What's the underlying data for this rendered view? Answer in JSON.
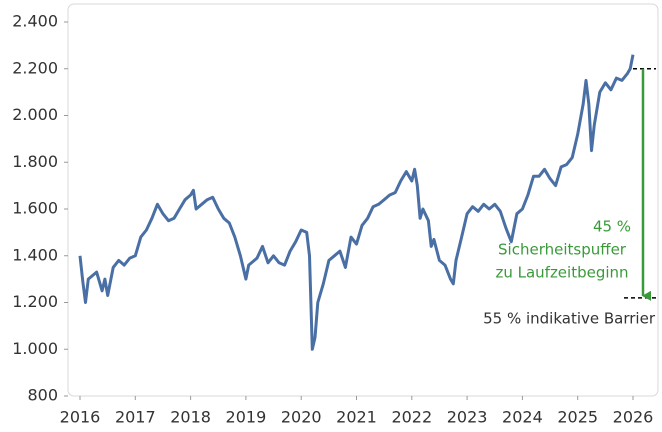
{
  "chart_data": {
    "type": "line",
    "xlim": [
      2016,
      2026
    ],
    "xticks": [
      2016,
      2017,
      2018,
      2019,
      2020,
      2021,
      2022,
      2023,
      2024,
      2025,
      2026
    ],
    "ylim": [
      800,
      2400
    ],
    "yticks": [
      {
        "value": 800,
        "label": "800"
      },
      {
        "value": 1000,
        "label": "1.000"
      },
      {
        "value": 1200,
        "label": "1.200"
      },
      {
        "value": 1400,
        "label": "1.400"
      },
      {
        "value": 1600,
        "label": "1.600"
      },
      {
        "value": 1800,
        "label": "1.800"
      },
      {
        "value": 2000,
        "label": "2.000"
      },
      {
        "value": 2200,
        "label": "2.200"
      },
      {
        "value": 2400,
        "label": "2.400"
      }
    ],
    "series": [
      {
        "color": "#4a6fa5",
        "x": [
          2016.0,
          2016.05,
          2016.1,
          2016.15,
          2016.3,
          2016.4,
          2016.45,
          2016.5,
          2016.6,
          2016.7,
          2016.8,
          2016.9,
          2017.0,
          2017.1,
          2017.2,
          2017.3,
          2017.4,
          2017.5,
          2017.6,
          2017.7,
          2017.8,
          2017.9,
          2018.0,
          2018.05,
          2018.1,
          2018.2,
          2018.3,
          2018.4,
          2018.5,
          2018.6,
          2018.7,
          2018.8,
          2018.9,
          2019.0,
          2019.05,
          2019.2,
          2019.3,
          2019.4,
          2019.5,
          2019.6,
          2019.7,
          2019.8,
          2019.9,
          2020.0,
          2020.1,
          2020.15,
          2020.2,
          2020.25,
          2020.3,
          2020.4,
          2020.5,
          2020.6,
          2020.7,
          2020.8,
          2020.9,
          2021.0,
          2021.1,
          2021.2,
          2021.3,
          2021.4,
          2021.5,
          2021.6,
          2021.7,
          2021.8,
          2021.9,
          2022.0,
          2022.05,
          2022.1,
          2022.15,
          2022.2,
          2022.3,
          2022.35,
          2022.4,
          2022.5,
          2022.6,
          2022.7,
          2022.75,
          2022.8,
          2022.9,
          2023.0,
          2023.1,
          2023.2,
          2023.3,
          2023.4,
          2023.5,
          2023.6,
          2023.7,
          2023.8,
          2023.9,
          2024.0,
          2024.1,
          2024.2,
          2024.3,
          2024.4,
          2024.5,
          2024.6,
          2024.7,
          2024.8,
          2024.9,
          2025.0,
          2025.1,
          2025.15,
          2025.2,
          2025.25,
          2025.3,
          2025.4,
          2025.5,
          2025.6,
          2025.7,
          2025.8,
          2025.9,
          2025.95,
          2026.0
        ],
        "values": [
          1400,
          1290,
          1200,
          1300,
          1330,
          1250,
          1300,
          1230,
          1350,
          1380,
          1360,
          1390,
          1400,
          1480,
          1510,
          1560,
          1620,
          1580,
          1550,
          1560,
          1600,
          1640,
          1660,
          1680,
          1600,
          1620,
          1640,
          1650,
          1600,
          1560,
          1540,
          1480,
          1400,
          1300,
          1360,
          1390,
          1440,
          1370,
          1400,
          1370,
          1360,
          1420,
          1460,
          1510,
          1500,
          1400,
          1000,
          1050,
          1200,
          1280,
          1380,
          1400,
          1420,
          1350,
          1480,
          1450,
          1530,
          1560,
          1610,
          1620,
          1640,
          1660,
          1670,
          1720,
          1760,
          1720,
          1770,
          1700,
          1560,
          1600,
          1550,
          1440,
          1470,
          1380,
          1360,
          1300,
          1280,
          1380,
          1480,
          1580,
          1610,
          1590,
          1620,
          1600,
          1620,
          1590,
          1520,
          1460,
          1580,
          1600,
          1660,
          1740,
          1740,
          1770,
          1730,
          1700,
          1780,
          1790,
          1820,
          1920,
          2050,
          2150,
          2050,
          1850,
          1960,
          2100,
          2140,
          2110,
          2160,
          2150,
          2180,
          2200,
          2260
        ]
      }
    ],
    "reference_level": 2200,
    "barrier_level": 1220,
    "buffer_label": "45 %",
    "buffer_text_1": "Sicherheitspuffer",
    "buffer_text_2": "zu Laufzeitbeginn",
    "barrier_label": "55 % indikative Barrier",
    "annotation_color": "#3a9a3a"
  }
}
